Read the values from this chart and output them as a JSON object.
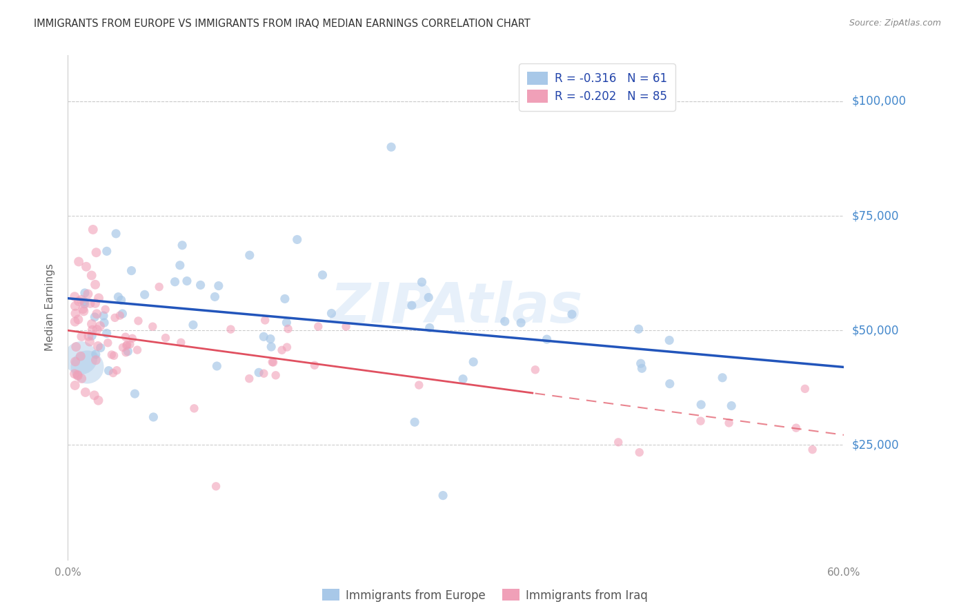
{
  "title": "IMMIGRANTS FROM EUROPE VS IMMIGRANTS FROM IRAQ MEDIAN EARNINGS CORRELATION CHART",
  "source_text": "Source: ZipAtlas.com",
  "ylabel": "Median Earnings",
  "xlim": [
    0.0,
    0.6
  ],
  "ylim": [
    0,
    110000
  ],
  "yticks": [
    0,
    25000,
    50000,
    75000,
    100000
  ],
  "xtick_labels": [
    "0.0%",
    "",
    "",
    "",
    "",
    "",
    "60.0%"
  ],
  "watermark": "ZIPAtlas",
  "blue_color": "#a8c8e8",
  "pink_color": "#f0a0b8",
  "blue_line_color": "#2255bb",
  "pink_line_color": "#e05060",
  "right_label_color": "#4488cc",
  "legend_text_color": "#2244aa",
  "title_color": "#333333",
  "source_color": "#888888",
  "ylabel_color": "#666666",
  "grid_color": "#cccccc",
  "blue_R": -0.316,
  "blue_N": 61,
  "pink_R": -0.202,
  "pink_N": 85,
  "blue_intercept": 57000,
  "blue_slope": -25000,
  "pink_intercept": 50000,
  "pink_slope": -38000,
  "pink_line_end": 0.36
}
